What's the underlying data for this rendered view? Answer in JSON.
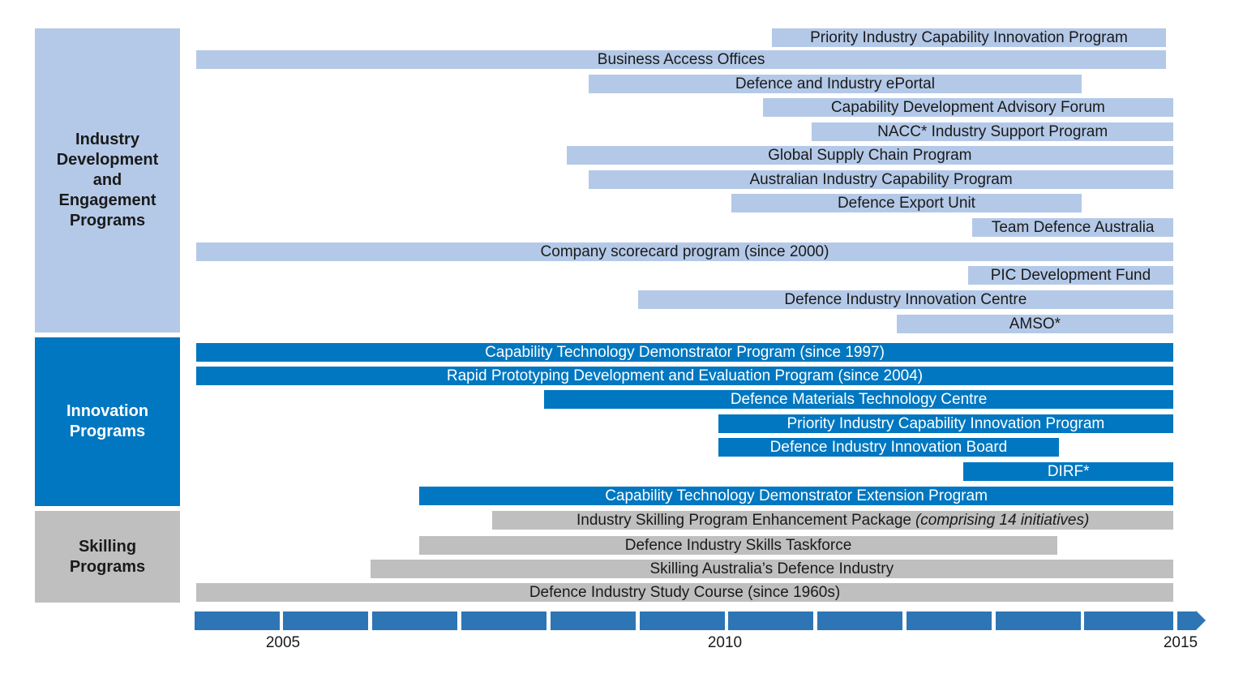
{
  "groups": [
    {
      "id": "industry",
      "label": "Industry Development and Engagement Programs",
      "lines": [
        "Industry",
        "Development",
        "and",
        "Engagement",
        "Programs"
      ],
      "color": "#b4c9e8"
    },
    {
      "id": "innovation",
      "label": "Innovation Programs",
      "lines": [
        "Innovation",
        "Programs"
      ],
      "color": "#0077c0"
    },
    {
      "id": "skilling",
      "label": "Skilling Programs",
      "lines": [
        "Skilling",
        "Programs"
      ],
      "color": "#bfbfbf"
    }
  ],
  "colors": {
    "timeline": "#2e75b6"
  },
  "chart_data": {
    "type": "bar",
    "orientation": "horizontal-timeline",
    "x_ticks": [
      "2005",
      "2010",
      "2015"
    ],
    "xlim": [
      2004.05,
      2015.0
    ],
    "bars": [
      {
        "group": "industry",
        "label": "Priority Industry Capability Innovation Program",
        "start": 2010.5,
        "end": 2014.92
      },
      {
        "group": "industry",
        "label": "Business Access Offices",
        "start": 2004.05,
        "end": 2014.92
      },
      {
        "group": "industry",
        "label": "Defence and Industry ePortal",
        "start": 2008.45,
        "end": 2013.97
      },
      {
        "group": "industry",
        "label": "Capability Development Advisory Forum",
        "start": 2010.4,
        "end": 2015.0
      },
      {
        "group": "industry",
        "label": "NACC* Industry Support Program",
        "start": 2010.95,
        "end": 2015.0
      },
      {
        "group": "industry",
        "label": "Global Supply Chain Program",
        "start": 2008.2,
        "end": 2015.0
      },
      {
        "group": "industry",
        "label": "Australian Industry Capability Program",
        "start": 2008.45,
        "end": 2015.0
      },
      {
        "group": "industry",
        "label": "Defence Export Unit",
        "start": 2010.05,
        "end": 2013.97
      },
      {
        "group": "industry",
        "label": "Team Defence Australia",
        "start": 2012.75,
        "end": 2015.0
      },
      {
        "group": "industry",
        "label": "Company scorecard program (since 2000)",
        "start": 2004.05,
        "end": 2015.0
      },
      {
        "group": "industry",
        "label": "PIC Development Fund",
        "start": 2012.7,
        "end": 2015.0
      },
      {
        "group": "industry",
        "label": "Defence Industry Innovation Centre",
        "start": 2009.0,
        "end": 2015.0
      },
      {
        "group": "industry",
        "label": "AMSO*",
        "start": 2011.9,
        "end": 2015.0
      },
      {
        "group": "innovation",
        "label": "Capability Technology Demonstrator Program (since 1997)",
        "start": 2004.05,
        "end": 2015.0
      },
      {
        "group": "innovation",
        "label": "Rapid Prototyping Development and Evaluation Program (since 2004)",
        "start": 2004.05,
        "end": 2015.0
      },
      {
        "group": "innovation",
        "label": "Defence Materials Technology Centre",
        "start": 2007.95,
        "end": 2015.0
      },
      {
        "group": "innovation",
        "label": "Priority Industry Capability Innovation Program",
        "start": 2009.9,
        "end": 2015.0
      },
      {
        "group": "innovation",
        "label": "Defence Industry Innovation Board",
        "start": 2009.9,
        "end": 2013.72
      },
      {
        "group": "innovation",
        "label": "DIRF*",
        "start": 2012.65,
        "end": 2015.0
      },
      {
        "group": "innovation",
        "label": "Capability Technology Demonstrator Extension Program",
        "start": 2006.55,
        "end": 2015.0
      },
      {
        "group": "skilling",
        "label": "Industry Skilling Program Enhancement Package",
        "note": "(comprising 14 initiatives)",
        "start": 2007.37,
        "end": 2015.0
      },
      {
        "group": "skilling",
        "label": "Defence Industry Skills Taskforce",
        "start": 2006.55,
        "end": 2013.7
      },
      {
        "group": "skilling",
        "label": "Skilling Australia’s Defence Industry",
        "start": 2006.0,
        "end": 2015.0
      },
      {
        "group": "skilling",
        "label": "Defence Industry Study Course (since 1960s)",
        "start": 2004.05,
        "end": 2015.0
      }
    ]
  }
}
